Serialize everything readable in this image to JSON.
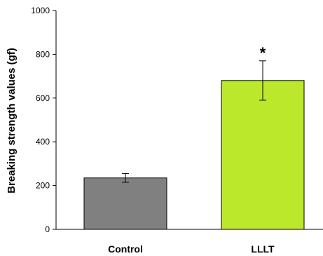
{
  "chart_data": {
    "type": "bar",
    "title": "",
    "xlabel": "",
    "ylabel": "Breaking strength values (gf)",
    "ylim": [
      0,
      1000
    ],
    "yticks": [
      0,
      200,
      400,
      600,
      800,
      1000
    ],
    "categories": [
      "Control",
      "LLLT"
    ],
    "values": [
      235,
      680
    ],
    "errors": [
      20,
      90
    ],
    "colors": [
      "#808080",
      "#bbe82a"
    ],
    "annotations": [
      {
        "category": "LLLT",
        "text": "*"
      }
    ],
    "grid": false
  }
}
